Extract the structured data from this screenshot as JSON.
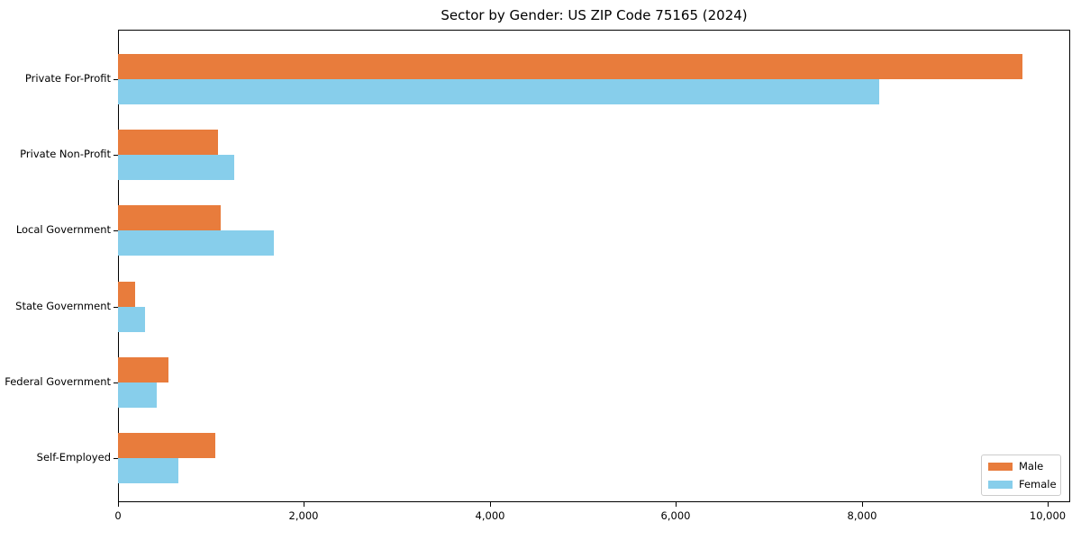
{
  "title": "Sector by Gender: US ZIP Code 75165 (2024)",
  "chart_data": {
    "type": "bar",
    "orientation": "horizontal",
    "title": "Sector by Gender: US ZIP Code 75165 (2024)",
    "xlabel": "",
    "ylabel": "",
    "categories": [
      "Private For-Profit",
      "Private Non-Profit",
      "Local Government",
      "State Government",
      "Federal Government",
      "Self-Employed"
    ],
    "series": [
      {
        "name": "Male",
        "color": "#e87c3c",
        "values": [
          9730,
          1080,
          1100,
          185,
          545,
          1050
        ]
      },
      {
        "name": "Female",
        "color": "#87ceeb",
        "values": [
          8190,
          1250,
          1680,
          290,
          420,
          650
        ]
      }
    ],
    "xlim": [
      0,
      10240
    ],
    "x_ticks": [
      0,
      2000,
      4000,
      6000,
      8000,
      10000
    ],
    "x_tick_labels": [
      "0",
      "2,000",
      "4,000",
      "6,000",
      "8,000",
      "10,000"
    ],
    "grid": false,
    "legend_position": "lower right"
  },
  "legend": {
    "items": [
      {
        "label": "Male",
        "color": "#e87c3c"
      },
      {
        "label": "Female",
        "color": "#87ceeb"
      }
    ]
  }
}
